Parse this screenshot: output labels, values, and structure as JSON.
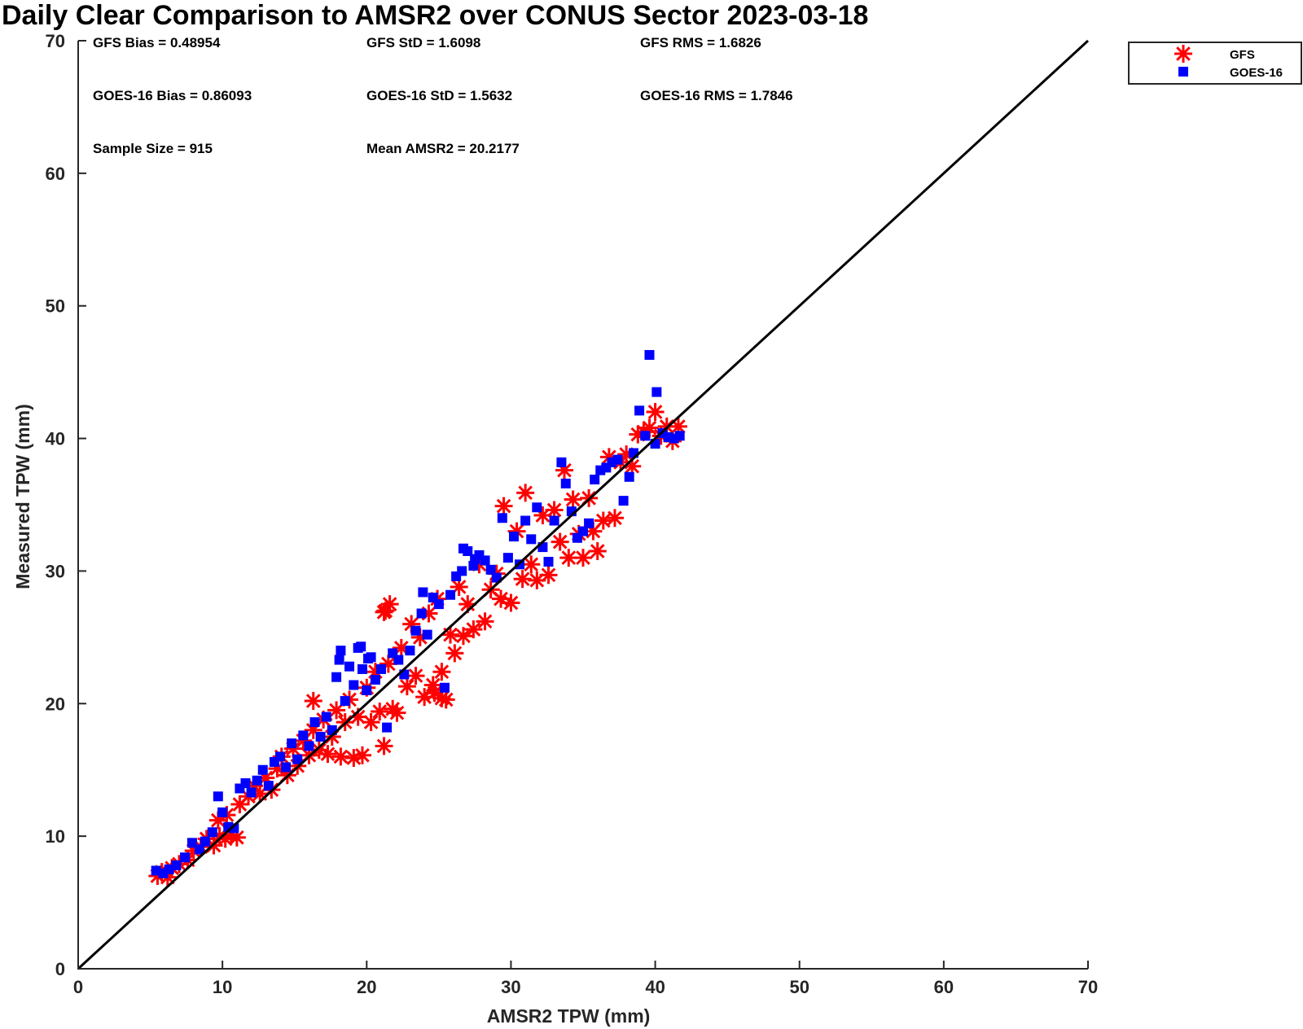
{
  "chart_data": {
    "type": "scatter",
    "title": "Daily Clear Comparison to AMSR2 over CONUS Sector 2023-03-18",
    "xlabel": "AMSR2 TPW (mm)",
    "ylabel": "Measured TPW (mm)",
    "xlim": [
      0,
      70
    ],
    "ylim": [
      0,
      70
    ],
    "x_ticks": [
      "0",
      "10",
      "20",
      "30",
      "40",
      "50",
      "60",
      "70"
    ],
    "y_ticks": [
      "0",
      "10",
      "20",
      "30",
      "40",
      "50",
      "60",
      "70"
    ],
    "grid": false,
    "legend_position": "top-right outside",
    "stats": [
      "GFS Bias = 0.48954",
      "GFS StD = 1.6098",
      "GFS RMS = 1.6826",
      "GOES-16 Bias = 0.86093",
      "GOES-16 StD = 1.5632",
      "GOES-16 RMS = 1.7846",
      "Sample Size = 915",
      "Mean AMSR2 = 20.2177"
    ],
    "reference_line": {
      "x": [
        0,
        70
      ],
      "y": [
        0,
        70
      ],
      "color": "#000000"
    },
    "series": [
      {
        "name": "GFS",
        "marker": "asterisk",
        "color": "#ff0000",
        "points": [
          [
            5.5,
            7.0
          ],
          [
            5.8,
            7.3
          ],
          [
            6.2,
            6.9
          ],
          [
            6.5,
            7.6
          ],
          [
            7.0,
            7.9
          ],
          [
            7.6,
            8.2
          ],
          [
            8.0,
            8.9
          ],
          [
            8.5,
            9.2
          ],
          [
            8.9,
            9.8
          ],
          [
            9.4,
            9.3
          ],
          [
            9.8,
            10.0
          ],
          [
            10.2,
            9.8
          ],
          [
            10.6,
            10.1
          ],
          [
            11.0,
            9.9
          ],
          [
            9.7,
            11.2
          ],
          [
            10.3,
            11.6
          ],
          [
            11.2,
            12.4
          ],
          [
            11.8,
            13.0
          ],
          [
            12.2,
            13.8
          ],
          [
            12.6,
            13.2
          ],
          [
            13.0,
            14.4
          ],
          [
            13.4,
            13.5
          ],
          [
            13.8,
            15.1
          ],
          [
            14.1,
            16.0
          ],
          [
            14.5,
            14.6
          ],
          [
            14.9,
            16.6
          ],
          [
            15.2,
            15.3
          ],
          [
            15.6,
            17.2
          ],
          [
            16.0,
            16.1
          ],
          [
            16.3,
            18.0
          ],
          [
            16.7,
            16.5
          ],
          [
            17.0,
            18.8
          ],
          [
            17.3,
            16.2
          ],
          [
            17.6,
            17.5
          ],
          [
            17.9,
            19.5
          ],
          [
            18.2,
            16.0
          ],
          [
            18.5,
            18.6
          ],
          [
            18.8,
            20.3
          ],
          [
            19.1,
            15.9
          ],
          [
            19.4,
            19.0
          ],
          [
            19.7,
            16.1
          ],
          [
            20.0,
            21.2
          ],
          [
            20.3,
            18.6
          ],
          [
            20.6,
            22.4
          ],
          [
            20.9,
            19.4
          ],
          [
            21.2,
            16.8
          ],
          [
            21.5,
            23.0
          ],
          [
            21.8,
            19.6
          ],
          [
            22.1,
            19.3
          ],
          [
            22.4,
            24.2
          ],
          [
            22.8,
            21.3
          ],
          [
            23.1,
            26.0
          ],
          [
            23.4,
            22.1
          ],
          [
            23.7,
            25.0
          ],
          [
            24.0,
            20.5
          ],
          [
            24.3,
            26.8
          ],
          [
            24.6,
            21.4
          ],
          [
            24.9,
            27.9
          ],
          [
            25.2,
            22.4
          ],
          [
            25.5,
            20.3
          ],
          [
            25.8,
            25.2
          ],
          [
            26.1,
            23.8
          ],
          [
            26.4,
            28.8
          ],
          [
            26.7,
            25.1
          ],
          [
            27.0,
            27.5
          ],
          [
            27.4,
            25.6
          ],
          [
            27.8,
            30.5
          ],
          [
            28.2,
            26.2
          ],
          [
            28.6,
            28.6
          ],
          [
            29.0,
            29.8
          ],
          [
            29.3,
            27.9
          ],
          [
            29.5,
            34.9
          ],
          [
            30.0,
            27.6
          ],
          [
            30.4,
            33.0
          ],
          [
            30.8,
            29.4
          ],
          [
            31.0,
            35.9
          ],
          [
            31.4,
            30.5
          ],
          [
            31.8,
            29.3
          ],
          [
            32.2,
            34.2
          ],
          [
            32.6,
            29.7
          ],
          [
            33.0,
            34.6
          ],
          [
            33.4,
            32.2
          ],
          [
            33.7,
            37.6
          ],
          [
            34.0,
            31.0
          ],
          [
            34.3,
            35.4
          ],
          [
            34.7,
            32.8
          ],
          [
            35.0,
            31.0
          ],
          [
            35.4,
            35.5
          ],
          [
            35.7,
            33.0
          ],
          [
            36.0,
            31.5
          ],
          [
            36.4,
            33.8
          ],
          [
            36.8,
            38.6
          ],
          [
            37.2,
            34.0
          ],
          [
            37.6,
            38.2
          ],
          [
            38.0,
            38.8
          ],
          [
            38.4,
            37.9
          ],
          [
            38.8,
            40.3
          ],
          [
            39.2,
            40.5
          ],
          [
            39.6,
            40.8
          ],
          [
            40.0,
            42.0
          ],
          [
            40.4,
            40.2
          ],
          [
            40.8,
            40.9
          ],
          [
            41.2,
            39.8
          ],
          [
            41.6,
            40.9
          ],
          [
            21.3,
            27.0
          ],
          [
            21.6,
            27.5
          ],
          [
            21.2,
            26.9
          ],
          [
            24.7,
            20.8
          ],
          [
            25.2,
            20.4
          ],
          [
            16.3,
            20.2
          ]
        ]
      },
      {
        "name": "GOES-16",
        "marker": "square",
        "color": "#0000ff",
        "points": [
          [
            5.4,
            7.4
          ],
          [
            5.9,
            7.2
          ],
          [
            6.3,
            7.5
          ],
          [
            6.8,
            7.8
          ],
          [
            7.4,
            8.4
          ],
          [
            7.9,
            9.5
          ],
          [
            8.4,
            9.0
          ],
          [
            8.8,
            9.6
          ],
          [
            9.3,
            10.3
          ],
          [
            9.7,
            13.0
          ],
          [
            10.0,
            11.8
          ],
          [
            10.4,
            10.7
          ],
          [
            10.8,
            10.6
          ],
          [
            11.2,
            13.6
          ],
          [
            11.6,
            14.0
          ],
          [
            12.0,
            13.3
          ],
          [
            12.4,
            14.2
          ],
          [
            12.8,
            15.0
          ],
          [
            13.2,
            13.8
          ],
          [
            13.6,
            15.6
          ],
          [
            14.0,
            16.0
          ],
          [
            14.4,
            15.2
          ],
          [
            14.8,
            17.0
          ],
          [
            15.2,
            15.8
          ],
          [
            15.6,
            17.6
          ],
          [
            16.0,
            16.8
          ],
          [
            16.4,
            18.6
          ],
          [
            16.8,
            17.5
          ],
          [
            17.2,
            19.0
          ],
          [
            17.6,
            18.0
          ],
          [
            17.9,
            22.0
          ],
          [
            18.2,
            24.0
          ],
          [
            18.5,
            20.2
          ],
          [
            18.8,
            22.8
          ],
          [
            19.1,
            21.4
          ],
          [
            19.4,
            24.2
          ],
          [
            19.7,
            22.6
          ],
          [
            20.0,
            21.0
          ],
          [
            20.3,
            23.5
          ],
          [
            20.6,
            21.8
          ],
          [
            21.0,
            22.6
          ],
          [
            21.4,
            18.2
          ],
          [
            21.8,
            23.8
          ],
          [
            22.2,
            23.3
          ],
          [
            22.6,
            22.2
          ],
          [
            23.0,
            24.0
          ],
          [
            23.4,
            25.5
          ],
          [
            23.8,
            26.8
          ],
          [
            24.2,
            25.2
          ],
          [
            24.6,
            28.0
          ],
          [
            25.0,
            27.5
          ],
          [
            25.4,
            21.2
          ],
          [
            25.8,
            28.2
          ],
          [
            26.2,
            29.6
          ],
          [
            26.6,
            30.0
          ],
          [
            27.0,
            31.5
          ],
          [
            27.4,
            30.4
          ],
          [
            27.8,
            31.2
          ],
          [
            28.2,
            30.8
          ],
          [
            28.6,
            30.1
          ],
          [
            29.0,
            29.5
          ],
          [
            29.4,
            34.0
          ],
          [
            29.8,
            31.0
          ],
          [
            30.2,
            32.6
          ],
          [
            30.6,
            30.5
          ],
          [
            31.0,
            33.8
          ],
          [
            31.4,
            32.4
          ],
          [
            31.8,
            34.8
          ],
          [
            32.2,
            31.8
          ],
          [
            32.6,
            30.7
          ],
          [
            33.0,
            33.8
          ],
          [
            33.5,
            38.2
          ],
          [
            33.8,
            36.6
          ],
          [
            34.2,
            34.5
          ],
          [
            34.6,
            32.5
          ],
          [
            35.0,
            33.0
          ],
          [
            35.4,
            33.6
          ],
          [
            35.8,
            36.9
          ],
          [
            36.2,
            37.6
          ],
          [
            36.6,
            37.8
          ],
          [
            37.0,
            38.2
          ],
          [
            37.4,
            38.4
          ],
          [
            37.8,
            35.3
          ],
          [
            38.2,
            37.1
          ],
          [
            38.5,
            38.9
          ],
          [
            38.9,
            42.1
          ],
          [
            39.3,
            40.2
          ],
          [
            39.6,
            46.3
          ],
          [
            40.0,
            39.6
          ],
          [
            40.1,
            43.5
          ],
          [
            40.5,
            40.4
          ],
          [
            40.9,
            40.1
          ],
          [
            41.3,
            40.0
          ],
          [
            41.7,
            40.2
          ],
          [
            19.6,
            24.3
          ],
          [
            20.1,
            23.4
          ],
          [
            18.1,
            23.3
          ],
          [
            26.7,
            31.7
          ],
          [
            27.5,
            30.9
          ],
          [
            23.9,
            28.4
          ]
        ]
      }
    ]
  }
}
